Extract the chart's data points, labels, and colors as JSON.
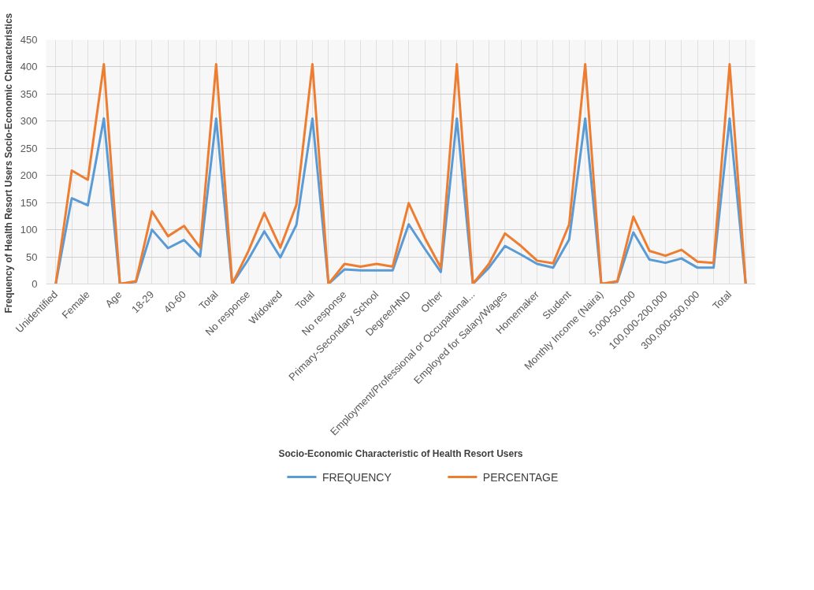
{
  "chart_data": {
    "type": "line",
    "xlabel": "Socio-Economic Characteristic of Health Resort Users",
    "ylabel": "Frequency of Health Resort Users  Socio-Economic Characteristics",
    "categories": [
      "Unidentified",
      null,
      "Female",
      null,
      "Age",
      null,
      "18-29",
      null,
      "40-60",
      null,
      "Total",
      null,
      "No response",
      null,
      "Widowed",
      null,
      "Total",
      null,
      "No response",
      null,
      "Primary-Secondary School",
      null,
      "Degree/HND",
      null,
      "Other",
      null,
      "Employment/Professional or Occupational...",
      null,
      "Employed for Salary/Wages",
      null,
      "Homemaker",
      null,
      "Student",
      null,
      "Monthly Income (Naira)",
      null,
      "5,000-50,000",
      null,
      "100,000-200,000",
      null,
      "300,000-500,000",
      null,
      "Total",
      null
    ],
    "series": [
      {
        "name": "FREQUENCY",
        "color": "#5b9bd5",
        "values": [
          0,
          158,
          145,
          305,
          0,
          4,
          100,
          66,
          81,
          51,
          305,
          0,
          45,
          97,
          49,
          109,
          305,
          0,
          27,
          25,
          25,
          25,
          110,
          65,
          22,
          305,
          0,
          30,
          70,
          54,
          37,
          30,
          82,
          305,
          0,
          4,
          95,
          45,
          39,
          47,
          30,
          30,
          305,
          0
        ]
      },
      {
        "name": "PERCENTAGE",
        "color": "#ed7d31",
        "values": [
          0,
          209,
          192,
          405,
          0,
          5,
          134,
          88,
          107,
          67,
          405,
          0,
          60,
          131,
          67,
          146,
          405,
          0,
          37,
          32,
          37,
          32,
          149,
          85,
          30,
          405,
          0,
          37,
          93,
          70,
          43,
          38,
          110,
          405,
          0,
          5,
          124,
          61,
          52,
          63,
          41,
          39,
          405,
          0
        ]
      }
    ],
    "ylim": [
      0,
      450
    ],
    "yticks": [
      0,
      50,
      100,
      150,
      200,
      250,
      300,
      350,
      400,
      450
    ],
    "grid": true,
    "legend": "bottom",
    "line_style": "solid"
  }
}
